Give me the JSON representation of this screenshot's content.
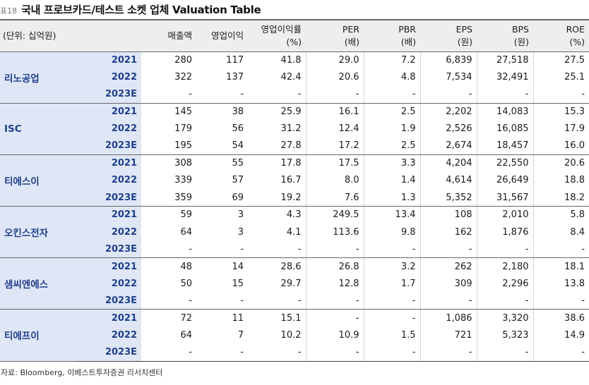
{
  "figure": {
    "label": "표18",
    "title": "국내 프로브카드/테스트 소켓 업체 Valuation Table"
  },
  "header": {
    "unit": "(단위: 십억원)",
    "columns": [
      {
        "l1": "매출액",
        "l2": ""
      },
      {
        "l1": "영업이익",
        "l2": ""
      },
      {
        "l1": "영업이익률",
        "l2": "(%)"
      },
      {
        "l1": "PER",
        "l2": "(배)"
      },
      {
        "l1": "PBR",
        "l2": "(배)"
      },
      {
        "l1": "EPS",
        "l2": "(원)"
      },
      {
        "l1": "BPS",
        "l2": "(원)"
      },
      {
        "l1": "ROE",
        "l2": "(%)"
      }
    ]
  },
  "companies": [
    {
      "name": "리노공업",
      "rows": [
        {
          "year": "2021",
          "values": [
            "280",
            "117",
            "41.8",
            "29.0",
            "7.2",
            "6,839",
            "27,518",
            "27.5"
          ]
        },
        {
          "year": "2022",
          "values": [
            "322",
            "137",
            "42.4",
            "20.6",
            "4.8",
            "7,534",
            "32,491",
            "25.1"
          ]
        },
        {
          "year": "2023E",
          "values": [
            "-",
            "-",
            "-",
            "-",
            "-",
            "-",
            "-",
            "-"
          ]
        }
      ]
    },
    {
      "name": "ISC",
      "rows": [
        {
          "year": "2021",
          "values": [
            "145",
            "38",
            "25.9",
            "16.1",
            "2.5",
            "2,202",
            "14,083",
            "15.3"
          ]
        },
        {
          "year": "2022",
          "values": [
            "179",
            "56",
            "31.2",
            "12.4",
            "1.9",
            "2,526",
            "16,085",
            "17.9"
          ]
        },
        {
          "year": "2023E",
          "values": [
            "195",
            "54",
            "27.8",
            "17.2",
            "2.5",
            "2,674",
            "18,457",
            "16.0"
          ]
        }
      ]
    },
    {
      "name": "티에스이",
      "rows": [
        {
          "year": "2021",
          "values": [
            "308",
            "55",
            "17.8",
            "17.5",
            "3.3",
            "4,204",
            "22,550",
            "20.6"
          ]
        },
        {
          "year": "2022",
          "values": [
            "339",
            "57",
            "16.7",
            "8.0",
            "1.4",
            "4,614",
            "26,649",
            "18.8"
          ]
        },
        {
          "year": "2023E",
          "values": [
            "359",
            "69",
            "19.2",
            "7.6",
            "1.3",
            "5,352",
            "31,567",
            "18.2"
          ]
        }
      ]
    },
    {
      "name": "오킨스전자",
      "rows": [
        {
          "year": "2021",
          "values": [
            "59",
            "3",
            "4.3",
            "249.5",
            "13.4",
            "108",
            "2,010",
            "5.8"
          ]
        },
        {
          "year": "2022",
          "values": [
            "64",
            "3",
            "4.1",
            "113.6",
            "9.8",
            "162",
            "1,876",
            "8.4"
          ]
        },
        {
          "year": "2023E",
          "values": [
            "-",
            "-",
            "-",
            "-",
            "-",
            "-",
            "-",
            "-"
          ]
        }
      ]
    },
    {
      "name": "샘씨엔에스",
      "rows": [
        {
          "year": "2021",
          "values": [
            "48",
            "14",
            "28.6",
            "26.8",
            "3.2",
            "262",
            "2,180",
            "18.1"
          ]
        },
        {
          "year": "2022",
          "values": [
            "50",
            "15",
            "29.7",
            "12.8",
            "1.7",
            "309",
            "2,296",
            "13.8"
          ]
        },
        {
          "year": "2023E",
          "values": [
            "-",
            "-",
            "-",
            "-",
            "-",
            "-",
            "-",
            "-"
          ]
        }
      ]
    },
    {
      "name": "티에프이",
      "rows": [
        {
          "year": "2021",
          "values": [
            "72",
            "11",
            "15.1",
            "-",
            "-",
            "1,086",
            "3,320",
            "38.6"
          ]
        },
        {
          "year": "2022",
          "values": [
            "64",
            "7",
            "10.2",
            "10.9",
            "1.5",
            "721",
            "5,323",
            "14.9"
          ]
        },
        {
          "year": "2023E",
          "values": [
            "-",
            "-",
            "-",
            "-",
            "-",
            "-",
            "-",
            "-"
          ]
        }
      ]
    }
  ],
  "source": "자료: Bloomberg, 이베스트투자증권 리서치센터"
}
